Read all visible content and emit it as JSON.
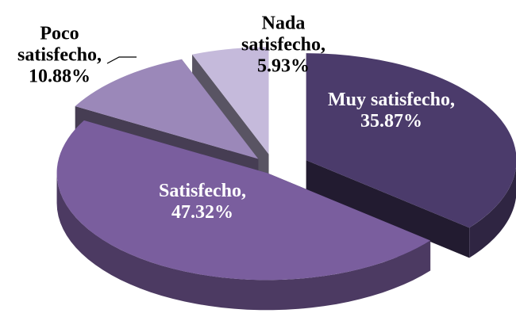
{
  "chart_data": {
    "type": "pie",
    "categories": [
      "Muy satisfecho,",
      "Satisfecho,",
      "Poco satisfecho,",
      "Nada satisfecho,"
    ],
    "values": [
      35.87,
      47.32,
      10.88,
      5.93
    ],
    "value_labels": [
      "35.87%",
      "47.32%",
      "10.88%",
      "5.93%"
    ],
    "colors": [
      "#4b3b6b",
      "#7a5e9e",
      "#9b88b9",
      "#c5badb"
    ]
  }
}
